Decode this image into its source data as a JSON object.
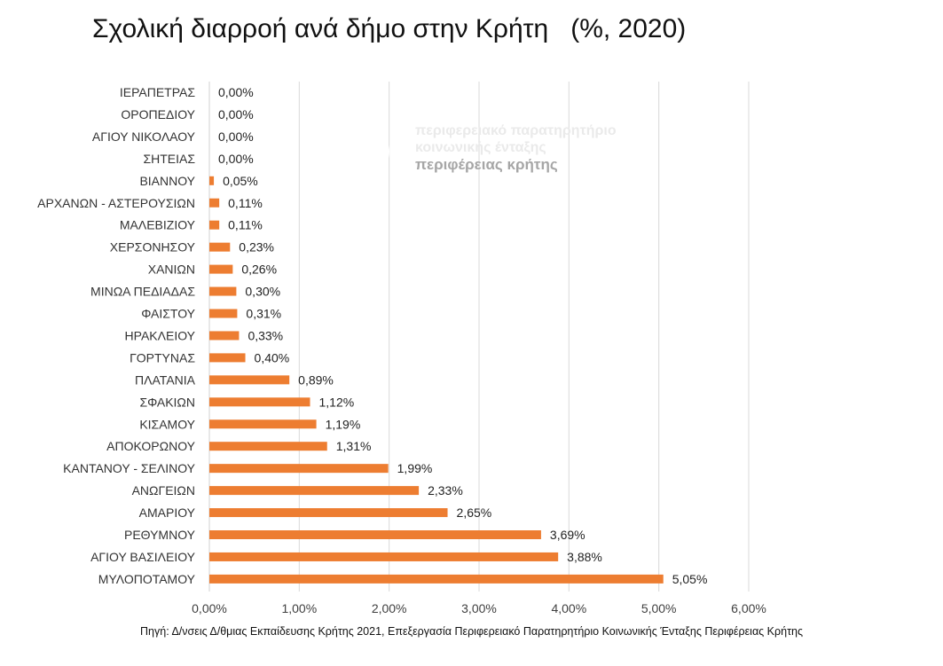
{
  "header": {
    "title": "Σχολική διαρροή ανά δήμο στην Κρήτη   (%, 2020)"
  },
  "watermark": {
    "line1": "περιφερειακό παρατηρητήριο",
    "line2": "κοινωνικής ένταξης",
    "line3": "περιφέρειας κρήτης"
  },
  "footer": {
    "source": "Πηγή: Δ/νσεις Δ/θμιας Εκπαίδευσης Κρήτης 2021, Επεξεργασία Περιφερειακό Παρατηρητήριο Κοινωνικής Ένταξης Περιφέρειας Κρήτης"
  },
  "chart_data": {
    "type": "bar",
    "orientation": "horizontal",
    "title": "Σχολική διαρροή ανά δήμο στην Κρήτη   (%, 2020)",
    "xlim": [
      0,
      6
    ],
    "x_ticks": [
      0,
      1,
      2,
      3,
      4,
      5,
      6
    ],
    "x_tick_labels": [
      "0,00%",
      "1,00%",
      "2,00%",
      "3,00%",
      "4,00%",
      "5,00%",
      "6,00%"
    ],
    "grid": "vertical",
    "bar_color": "#ED7D31",
    "categories": [
      "ΙΕΡΑΠΕΤΡΑΣ",
      "ΟΡΟΠΕΔΙΟΥ",
      "ΑΓΙΟΥ ΝΙΚΟΛΑΟΥ",
      "ΣΗΤΕΙΑΣ",
      "ΒΙΑΝΝΟΥ",
      "ΑΡΧΑΝΩΝ - ΑΣΤΕΡΟΥΣΙΩΝ",
      "ΜΑΛΕΒΙΖΙΟΥ",
      "ΧΕΡΣΟΝΗΣΟΥ",
      "ΧΑΝΙΩΝ",
      "ΜΙΝΩΑ ΠΕΔΙΑΔΑΣ",
      "ΦΑΙΣΤΟΥ",
      "ΗΡΑΚΛΕΙΟΥ",
      "ΓΟΡΤΥΝΑΣ",
      "ΠΛΑΤΑΝΙΑ",
      "ΣΦΑΚΙΩΝ",
      "ΚΙΣΑΜΟΥ",
      "ΑΠΟΚΟΡΩΝΟΥ",
      "ΚΑΝΤΑΝΟΥ - ΣΕΛΙΝΟΥ",
      "ΑΝΩΓΕΙΩΝ",
      "ΑΜΑΡΙΟΥ",
      "ΡΕΘΥΜΝΟΥ",
      "ΑΓΙΟΥ ΒΑΣΙΛΕΙΟΥ",
      "ΜΥΛΟΠΟΤΑΜΟΥ"
    ],
    "values": [
      0,
      0,
      0,
      0,
      0.05,
      0.11,
      0.11,
      0.23,
      0.26,
      0.3,
      0.31,
      0.33,
      0.4,
      0.89,
      1.12,
      1.19,
      1.31,
      1.99,
      2.33,
      2.65,
      3.69,
      3.88,
      5.05
    ],
    "value_labels": [
      "0,00%",
      "0,00%",
      "0,00%",
      "0,00%",
      "0,05%",
      "0,11%",
      "0,11%",
      "0,23%",
      "0,26%",
      "0,30%",
      "0,31%",
      "0,33%",
      "0,40%",
      "0,89%",
      "1,12%",
      "1,19%",
      "1,31%",
      "1,99%",
      "2,33%",
      "2,65%",
      "3,69%",
      "3,88%",
      "5,05%"
    ]
  }
}
